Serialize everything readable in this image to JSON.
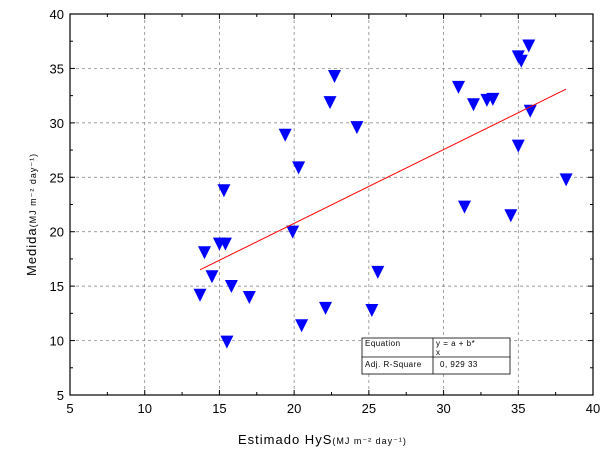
{
  "chart_data": {
    "type": "scatter",
    "title": "",
    "xlabel": "Estimado HyS",
    "xlabel_unit": "(MJ m⁻² day⁻¹)",
    "ylabel": "Medida",
    "ylabel_unit": "(MJ m⁻² day⁻¹)",
    "xlim": [
      5,
      40
    ],
    "ylim": [
      5,
      40
    ],
    "xticks": [
      5,
      10,
      15,
      20,
      25,
      30,
      35,
      40
    ],
    "yticks": [
      5,
      10,
      15,
      20,
      25,
      30,
      35,
      40
    ],
    "grid": true,
    "marker": "triangle-down",
    "marker_color": "#0000ff",
    "fit_color": "#ff0000",
    "points": [
      {
        "x": 13.7,
        "y": 14.3
      },
      {
        "x": 14.0,
        "y": 18.2
      },
      {
        "x": 14.5,
        "y": 16.0
      },
      {
        "x": 15.0,
        "y": 19.0
      },
      {
        "x": 15.4,
        "y": 19.0
      },
      {
        "x": 15.3,
        "y": 23.9
      },
      {
        "x": 15.5,
        "y": 10.0
      },
      {
        "x": 15.8,
        "y": 15.1
      },
      {
        "x": 17.0,
        "y": 14.1
      },
      {
        "x": 19.4,
        "y": 29.0
      },
      {
        "x": 19.9,
        "y": 20.1
      },
      {
        "x": 20.3,
        "y": 26.0
      },
      {
        "x": 20.5,
        "y": 11.5
      },
      {
        "x": 22.1,
        "y": 13.1
      },
      {
        "x": 22.4,
        "y": 32.0
      },
      {
        "x": 22.7,
        "y": 34.4
      },
      {
        "x": 24.2,
        "y": 29.7
      },
      {
        "x": 25.2,
        "y": 12.9
      },
      {
        "x": 25.6,
        "y": 16.4
      },
      {
        "x": 31.0,
        "y": 33.4
      },
      {
        "x": 31.4,
        "y": 22.4
      },
      {
        "x": 32.0,
        "y": 31.8
      },
      {
        "x": 32.9,
        "y": 32.2
      },
      {
        "x": 33.3,
        "y": 32.3
      },
      {
        "x": 34.5,
        "y": 21.6
      },
      {
        "x": 35.0,
        "y": 28.0
      },
      {
        "x": 35.0,
        "y": 36.2
      },
      {
        "x": 35.2,
        "y": 35.8
      },
      {
        "x": 35.7,
        "y": 37.2
      },
      {
        "x": 35.8,
        "y": 31.2
      },
      {
        "x": 38.2,
        "y": 24.9
      }
    ],
    "fit_line": {
      "x": [
        13.7,
        38.2
      ],
      "y": [
        16.5,
        33.1
      ]
    },
    "stats_box": {
      "rows": [
        {
          "label": "Equation",
          "value_line1": "y = a + b*",
          "value_line2": "x"
        },
        {
          "label": "Adj. R-Square",
          "value_line1": "0, 929 33",
          "value_line2": ""
        }
      ]
    }
  }
}
